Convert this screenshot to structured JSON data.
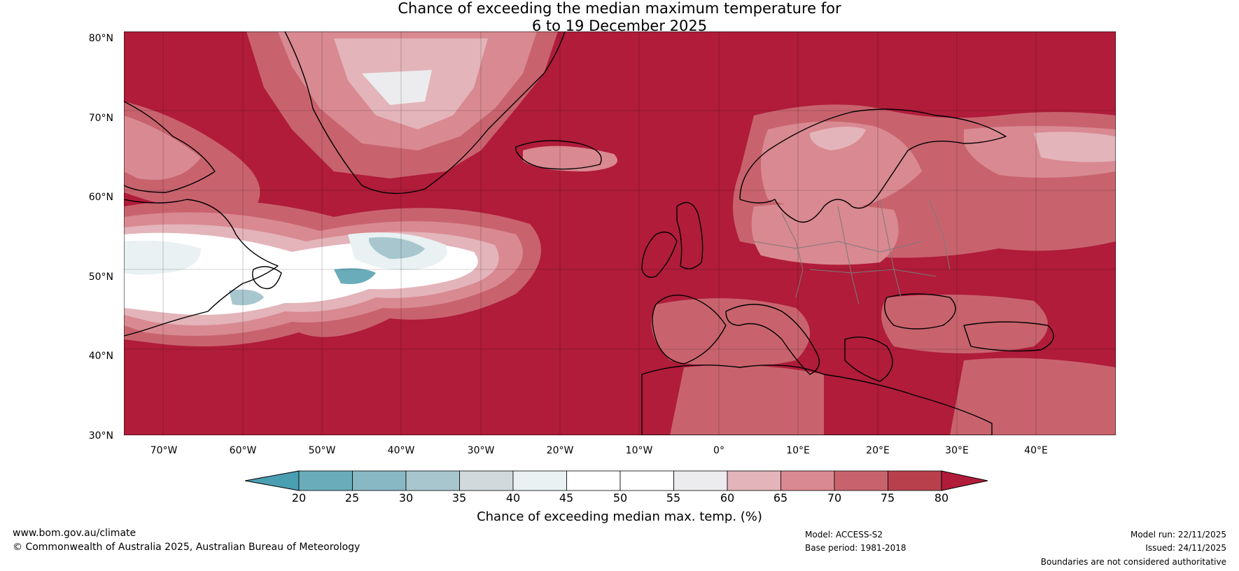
{
  "title": {
    "line1": "Chance of exceeding the median maximum temperature for",
    "line2": "6 to 19 December 2025"
  },
  "map": {
    "lat_labels": [
      "80°N",
      "70°N",
      "60°N",
      "50°N",
      "40°N",
      "30°N"
    ],
    "lon_labels": [
      "70°W",
      "60°W",
      "50°W",
      "40°W",
      "30°W",
      "20°W",
      "10°W",
      "0°",
      "10°E",
      "20°E",
      "30°E",
      "40°E"
    ]
  },
  "colorbar": {
    "ticks": [
      "20",
      "25",
      "30",
      "35",
      "40",
      "45",
      "50",
      "55",
      "60",
      "65",
      "70",
      "75",
      "80"
    ],
    "colors": [
      "#4a9fb2",
      "#6aacba",
      "#88b8c4",
      "#a8c6ce",
      "#d2d9dc",
      "#e9f1f2",
      "#ffffff",
      "#ffffff",
      "#ececee",
      "#e3b4ba",
      "#d98991",
      "#c8636e",
      "#b8404d",
      "#b01c3a"
    ],
    "label": "Chance of exceeding median max. temp. (%)"
  },
  "footer": {
    "website": "www.bom.gov.au/climate",
    "copyright": "© Commonwealth of Australia 2025, Australian Bureau of Meteorology",
    "model": "Model: ACCESS-S2",
    "base_period": "Base period: 1981-2018",
    "model_run": "Model run: 22/11/2025",
    "issued": "Issued: 24/11/2025",
    "disclaimer": "Boundaries are not considered authoritative"
  }
}
